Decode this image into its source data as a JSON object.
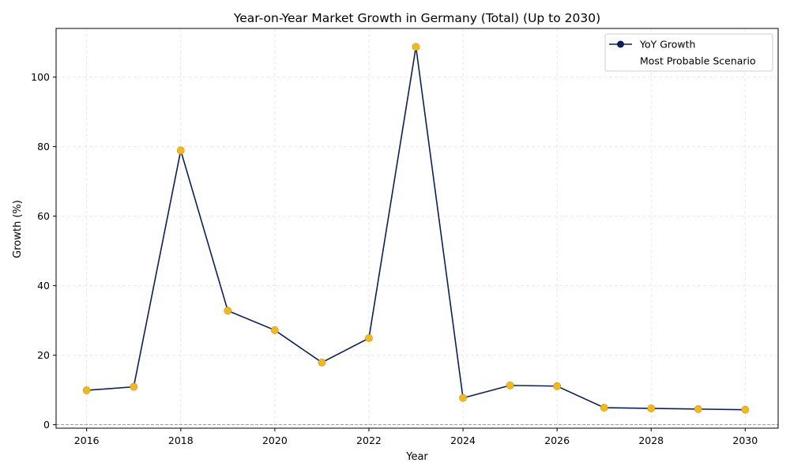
{
  "chart_data": {
    "type": "line",
    "title": "Year-on-Year Market Growth in Germany (Total) (Up to 2030)",
    "xlabel": "Year",
    "ylabel": "Growth (%)",
    "x": [
      2016,
      2017,
      2018,
      2019,
      2020,
      2021,
      2022,
      2023,
      2024,
      2025,
      2026,
      2027,
      2028,
      2029,
      2030
    ],
    "series": [
      {
        "name": "YoY Growth",
        "values": [
          9.9,
          10.9,
          78.9,
          32.8,
          27.2,
          17.9,
          24.9,
          108.7,
          7.7,
          11.3,
          11.1,
          4.9,
          4.7,
          4.5,
          4.3
        ],
        "line_color": "#0a1f5c",
        "marker_color": "#f5b81c"
      }
    ],
    "legend": {
      "placement": "top-right",
      "entries": [
        "YoY Growth",
        "Most Probable Scenario"
      ]
    },
    "xlim": [
      2015.35,
      2030.7
    ],
    "ylim": [
      -1,
      114
    ],
    "x_ticks": [
      2016,
      2018,
      2020,
      2022,
      2024,
      2026,
      2028,
      2030
    ],
    "y_ticks": [
      0,
      20,
      40,
      60,
      80,
      100
    ],
    "grid": true,
    "reference_line_y": 0
  }
}
